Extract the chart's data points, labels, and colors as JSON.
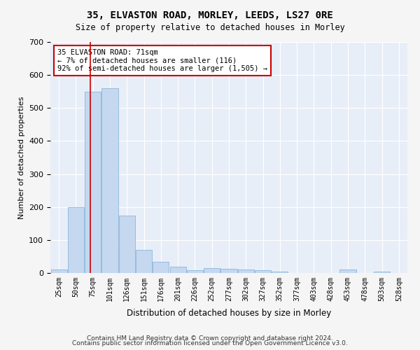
{
  "title": "35, ELVASTON ROAD, MORLEY, LEEDS, LS27 0RE",
  "subtitle": "Size of property relative to detached houses in Morley",
  "xlabel": "Distribution of detached houses by size in Morley",
  "ylabel": "Number of detached properties",
  "bar_color": "#c5d8f0",
  "bar_edge_color": "#7aafd4",
  "background_color": "#e8eef8",
  "grid_color": "#ffffff",
  "categories": [
    "25sqm",
    "50sqm",
    "75sqm",
    "101sqm",
    "126sqm",
    "151sqm",
    "176sqm",
    "201sqm",
    "226sqm",
    "252sqm",
    "277sqm",
    "302sqm",
    "327sqm",
    "352sqm",
    "377sqm",
    "403sqm",
    "428sqm",
    "453sqm",
    "478sqm",
    "503sqm",
    "528sqm"
  ],
  "values": [
    10,
    200,
    550,
    560,
    175,
    70,
    35,
    20,
    8,
    15,
    12,
    10,
    8,
    5,
    0,
    0,
    0,
    10,
    0,
    5,
    0
  ],
  "ylim": [
    0,
    700
  ],
  "yticks": [
    0,
    100,
    200,
    300,
    400,
    500,
    600,
    700
  ],
  "red_line_x": 1.85,
  "annotation_text": "35 ELVASTON ROAD: 71sqm\n← 7% of detached houses are smaller (116)\n92% of semi-detached houses are larger (1,505) →",
  "annotation_box_color": "#ffffff",
  "annotation_edge_color": "#cc0000",
  "red_line_color": "#cc0000",
  "footnote1": "Contains HM Land Registry data © Crown copyright and database right 2024.",
  "footnote2": "Contains public sector information licensed under the Open Government Licence v3.0."
}
